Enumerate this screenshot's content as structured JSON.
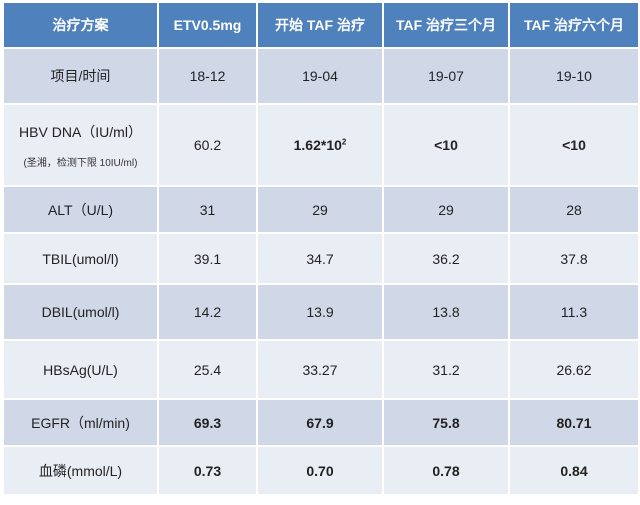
{
  "header": [
    "治疗方案",
    "ETV0.5mg",
    "开始 TAF 治疗",
    "TAF 治疗三个月",
    "TAF 治疗六个月"
  ],
  "rows": [
    {
      "label": "项目/时间",
      "values": [
        "18-12",
        "19-04",
        "19-07",
        "19-10"
      ]
    },
    {
      "label": "HBV DNA（IU/ml）",
      "note": "(圣湘，检测下限 10IU/ml)",
      "values": [
        "60.2",
        "1.62*10",
        "<10",
        "<10"
      ],
      "exponent": "2"
    },
    {
      "label": "ALT（U/L)",
      "values": [
        "31",
        "29",
        "29",
        "28"
      ]
    },
    {
      "label": "TBIL(umol/l)",
      "values": [
        "39.1",
        "34.7",
        "36.2",
        "37.8"
      ]
    },
    {
      "label": "DBIL(umol/l)",
      "values": [
        "14.2",
        "13.9",
        "13.8",
        "11.3"
      ]
    },
    {
      "label": "HBsAg(U/L)",
      "values": [
        "25.4",
        "33.27",
        "31.2",
        "26.62"
      ]
    },
    {
      "label": "EGFR（ml/min)",
      "values": [
        "69.3",
        "67.9",
        "75.8",
        "80.71"
      ]
    },
    {
      "label": "血磷(mmol/L)",
      "values": [
        "0.73",
        "0.70",
        "0.78",
        "0.84"
      ]
    }
  ]
}
